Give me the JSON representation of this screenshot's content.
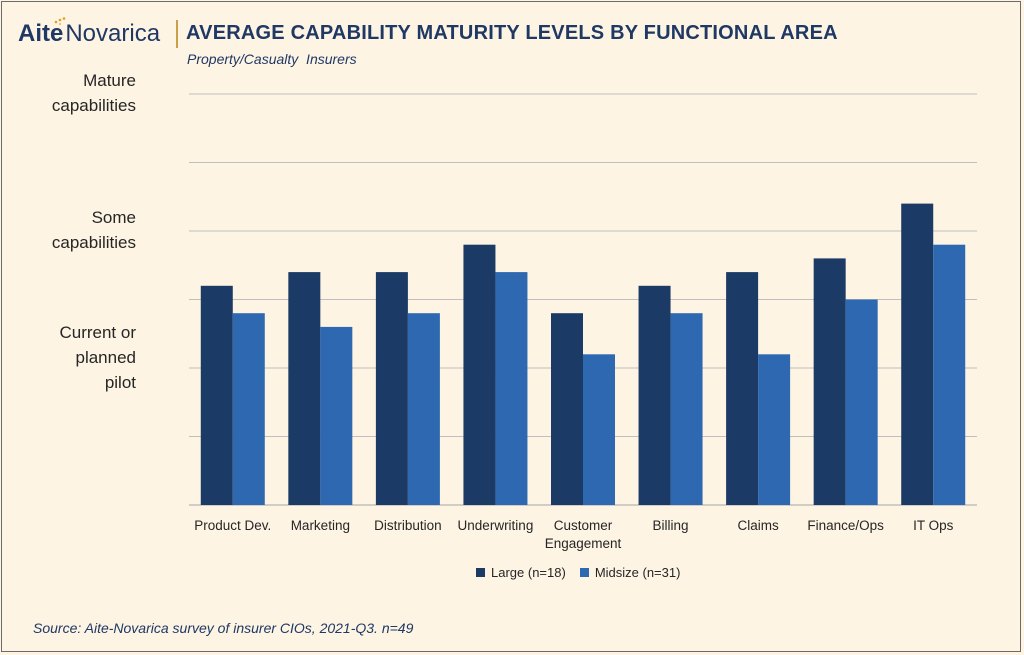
{
  "header": {
    "logo_aite": "Aite",
    "logo_novarica": "Novarica",
    "title": "AVERAGE CAPABILITY MATURITY LEVELS BY FUNCTIONAL AREA",
    "subtitle": "Property/Casualty  Insurers"
  },
  "footer": {
    "source": "Source: Aite-Novarica survey of insurer CIOs, 2021-Q3. n=49"
  },
  "colors": {
    "large": "#1c3a66",
    "midsize": "#2e68b1",
    "gridline": "#bfbfbf",
    "brand": "#1f3864"
  },
  "chart_data": {
    "type": "bar",
    "title": "AVERAGE CAPABILITY MATURITY LEVELS BY FUNCTIONAL AREA",
    "subtitle": "Property/Casualty  Insurers",
    "categories": [
      "Product Dev.",
      "Marketing",
      "Distribution",
      "Underwriting",
      "Customer\nEngagement",
      "Billing",
      "Claims",
      "Finance/Ops",
      "IT Ops"
    ],
    "series": [
      {
        "name": "Large (n=18)",
        "values": [
          1.6,
          1.7,
          1.7,
          1.9,
          1.4,
          1.6,
          1.7,
          1.8,
          2.2
        ]
      },
      {
        "name": "Midsize (n=31)",
        "values": [
          1.4,
          1.3,
          1.4,
          1.7,
          1.1,
          1.4,
          1.1,
          1.5,
          1.9
        ]
      }
    ],
    "ylim": [
      0,
      3
    ],
    "y_gridlines": [
      0.5,
      1.0,
      1.5,
      2.0,
      2.5,
      3.0
    ],
    "y_category_labels": [
      {
        "text": "Mature\ncapabilities",
        "value": 3.0
      },
      {
        "text": "Some\ncapabilities",
        "value": 2.0
      },
      {
        "text": "Current or\nplanned\npilot",
        "value": 1.0
      }
    ],
    "grid": true,
    "legend_position": "bottom"
  }
}
